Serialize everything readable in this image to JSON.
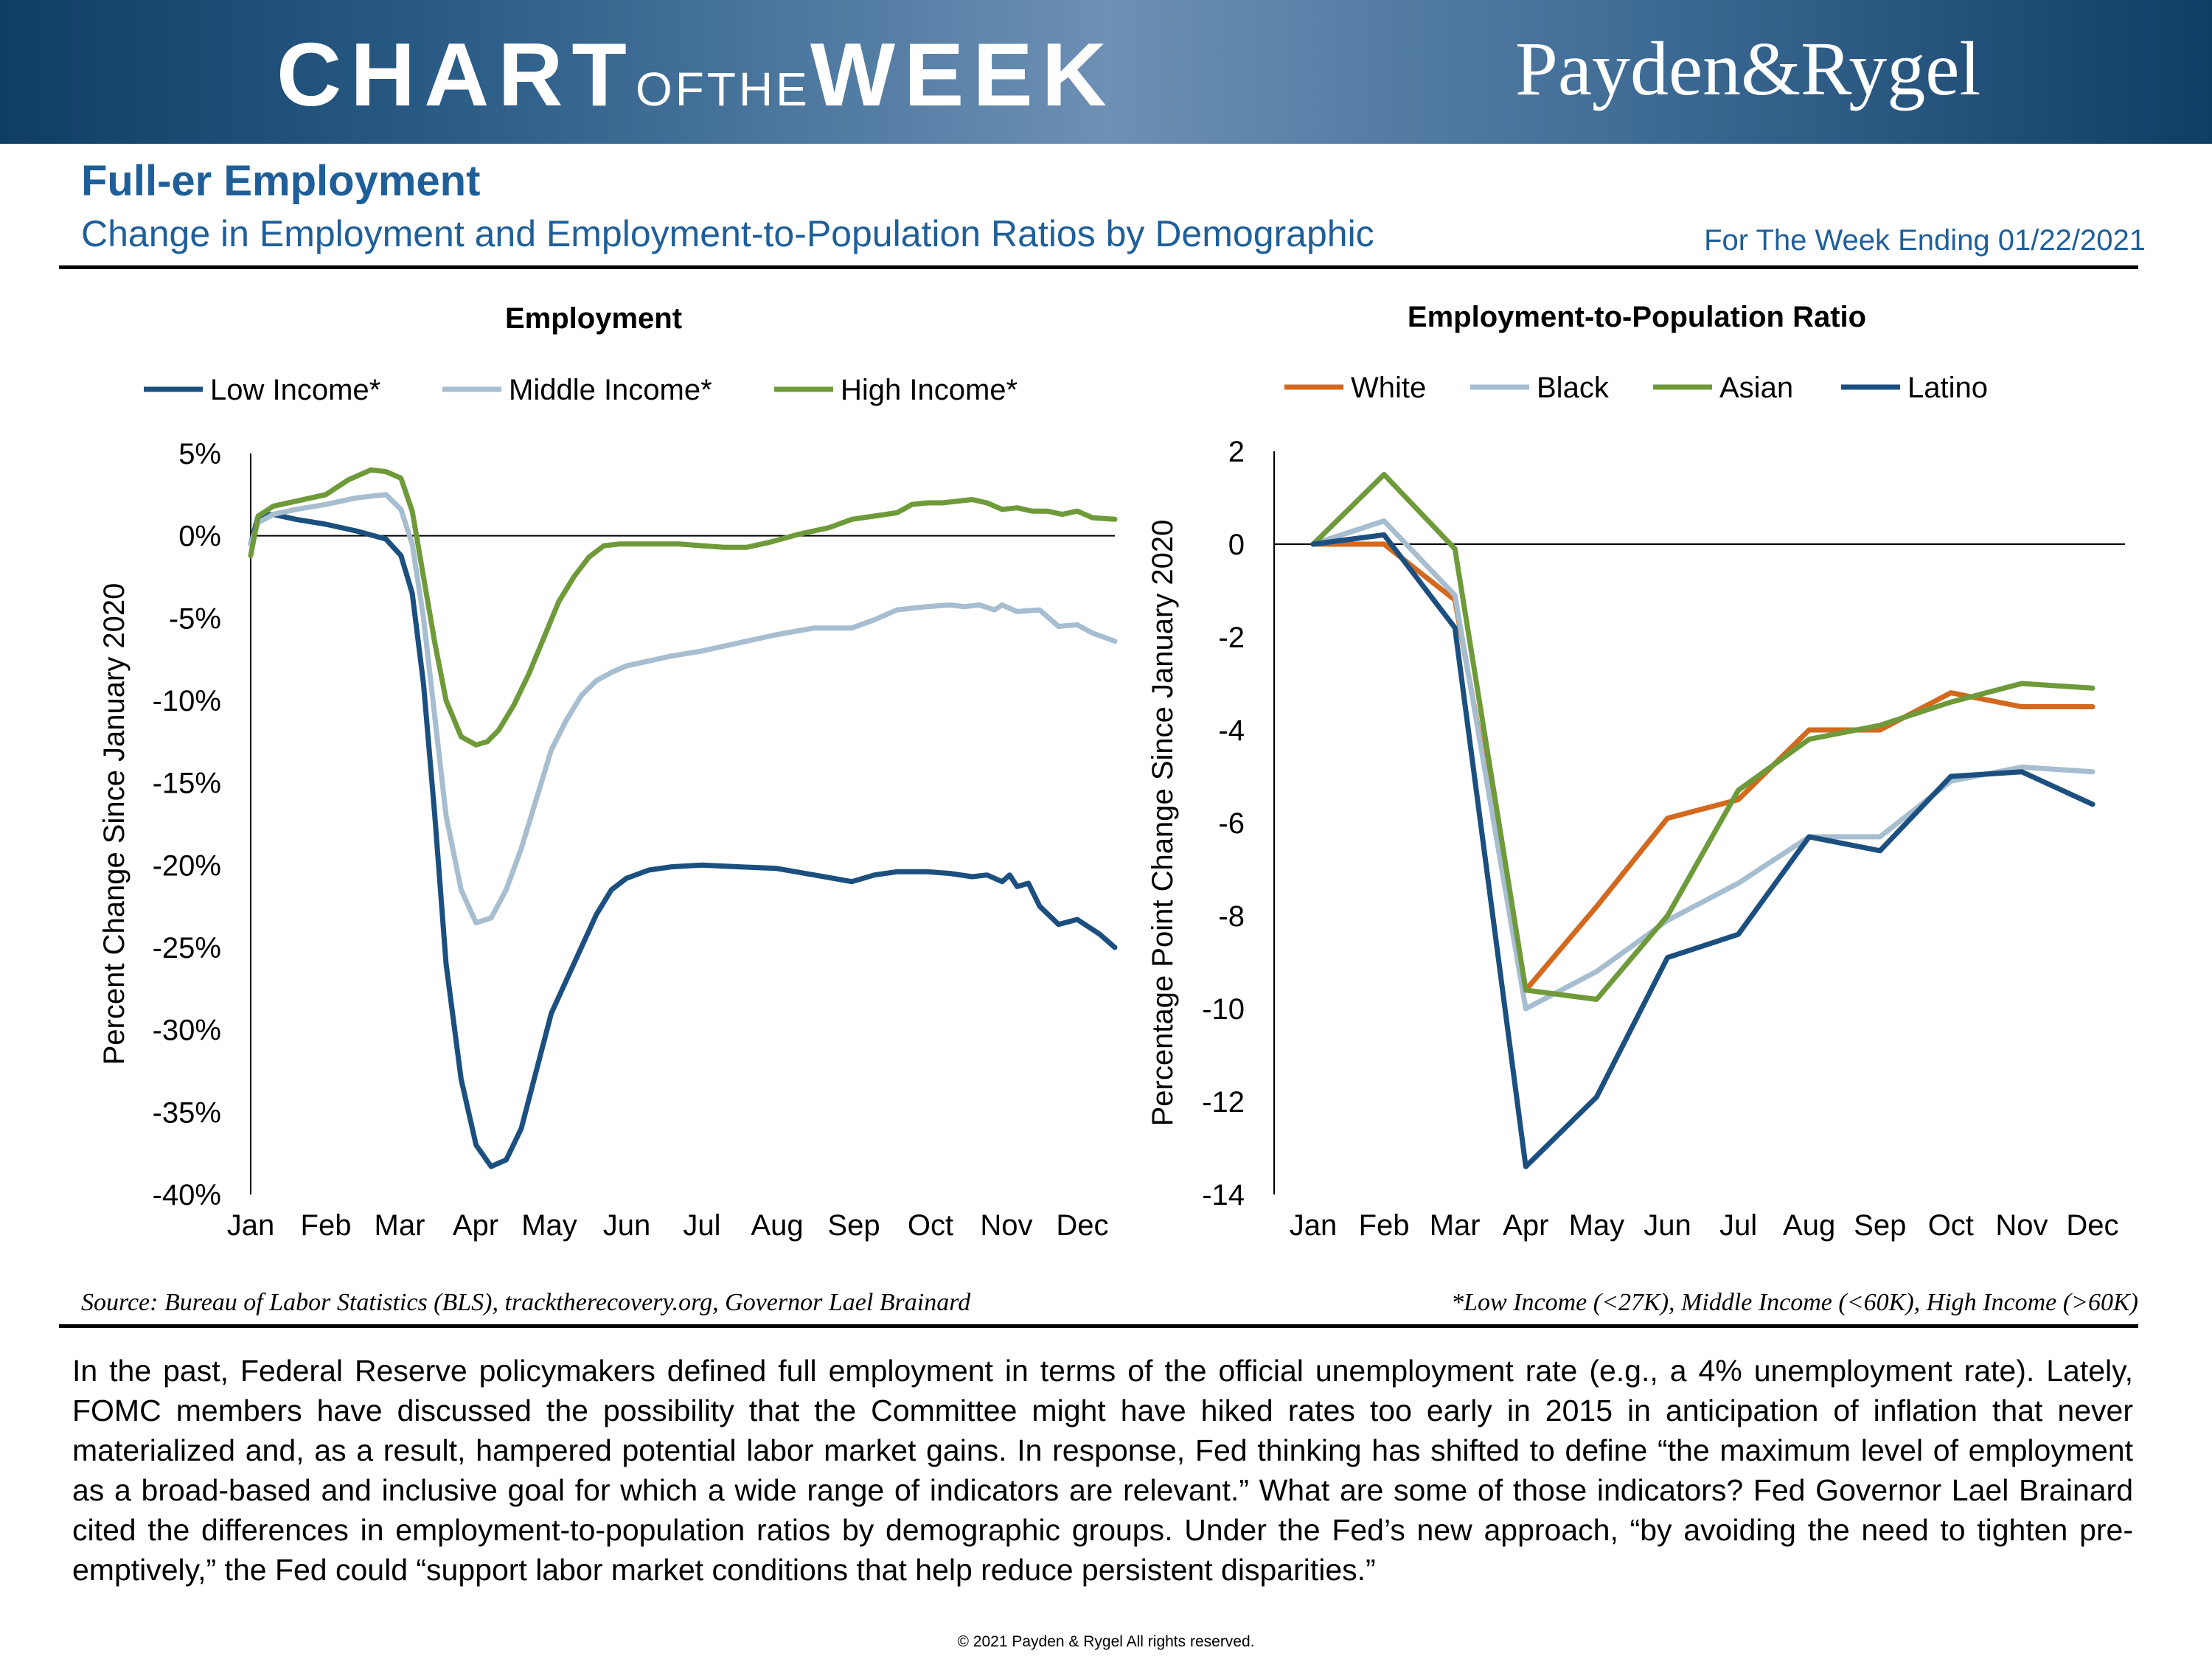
{
  "header": {
    "brand_chart": "CHART",
    "brand_ofthe": "OFTHE",
    "brand_week": "WEEK",
    "logo": "Payden&Rygel"
  },
  "title": "Full-er Employment",
  "subtitle": "Change in Employment and Employment-to-Population Ratios by Demographic",
  "week_ending": "For The Week Ending 01/22/2021",
  "chart_data": [
    {
      "type": "line",
      "title": "Employment",
      "ylabel": "Percent Change Since January 2020",
      "xlabel": "",
      "ylim": [
        -40,
        5
      ],
      "yticks": [
        "5%",
        "0%",
        "-5%",
        "-10%",
        "-15%",
        "-20%",
        "-25%",
        "-30%",
        "-35%",
        "-40%"
      ],
      "xlim": [
        0,
        11.5
      ],
      "categories": [
        "Jan",
        "Feb",
        "Mar",
        "Apr",
        "May",
        "Jun",
        "Jul",
        "Aug",
        "Sep",
        "Oct",
        "Nov",
        "Dec"
      ],
      "legend_position": "top",
      "series": [
        {
          "name": "Low Income*",
          "color": "#1b4f7f",
          "x": [
            0,
            0.1,
            0.3,
            0.6,
            1.0,
            1.4,
            1.8,
            2.0,
            2.15,
            2.3,
            2.45,
            2.6,
            2.8,
            3.0,
            3.2,
            3.4,
            3.6,
            3.8,
            4.0,
            4.2,
            4.4,
            4.6,
            4.8,
            5.0,
            5.3,
            5.6,
            6.0,
            6.5,
            7.0,
            7.5,
            8.0,
            8.3,
            8.6,
            9.0,
            9.3,
            9.6,
            9.8,
            10.0,
            10.1,
            10.2,
            10.35,
            10.5,
            10.75,
            11.0,
            11.3,
            11.5
          ],
          "values": [
            -0.5,
            1.2,
            1.3,
            1.0,
            0.7,
            0.3,
            -0.2,
            -1.2,
            -3.5,
            -9,
            -17,
            -26,
            -33,
            -37,
            -38.3,
            -37.9,
            -36,
            -32.5,
            -29,
            -27,
            -25,
            -23,
            -21.5,
            -20.8,
            -20.3,
            -20.1,
            -20.0,
            -20.1,
            -20.2,
            -20.6,
            -21.0,
            -20.6,
            -20.4,
            -20.4,
            -20.5,
            -20.7,
            -20.6,
            -21.0,
            -20.6,
            -21.3,
            -21.1,
            -22.5,
            -23.6,
            -23.3,
            -24.2,
            -25.0
          ]
        },
        {
          "name": "Middle Income*",
          "color": "#a7bdd0",
          "x": [
            0,
            0.1,
            0.3,
            0.6,
            1.0,
            1.4,
            1.8,
            2.0,
            2.15,
            2.3,
            2.45,
            2.6,
            2.8,
            3.0,
            3.2,
            3.4,
            3.6,
            3.8,
            4.0,
            4.2,
            4.4,
            4.6,
            4.8,
            5.0,
            5.3,
            5.6,
            6.0,
            6.5,
            7.0,
            7.5,
            8.0,
            8.3,
            8.6,
            8.8,
            9.0,
            9.3,
            9.5,
            9.7,
            9.9,
            10.0,
            10.2,
            10.5,
            10.75,
            11.0,
            11.2,
            11.5
          ],
          "values": [
            -0.5,
            0.8,
            1.3,
            1.6,
            1.9,
            2.3,
            2.5,
            1.6,
            -0.5,
            -5,
            -11,
            -17,
            -21.5,
            -23.5,
            -23.2,
            -21.5,
            -19,
            -16,
            -13,
            -11.2,
            -9.7,
            -8.8,
            -8.3,
            -7.9,
            -7.6,
            -7.3,
            -7.0,
            -6.5,
            -6.0,
            -5.6,
            -5.6,
            -5.1,
            -4.5,
            -4.4,
            -4.3,
            -4.2,
            -4.3,
            -4.2,
            -4.5,
            -4.2,
            -4.6,
            -4.5,
            -5.5,
            -5.4,
            -5.9,
            -6.4
          ]
        },
        {
          "name": "High Income*",
          "color": "#6e9a3a",
          "x": [
            0,
            0.1,
            0.3,
            0.6,
            1.0,
            1.3,
            1.6,
            1.8,
            2.0,
            2.15,
            2.3,
            2.45,
            2.6,
            2.8,
            3.0,
            3.15,
            3.3,
            3.5,
            3.7,
            3.9,
            4.1,
            4.3,
            4.5,
            4.7,
            4.9,
            5.0,
            5.3,
            5.7,
            6.0,
            6.3,
            6.6,
            6.9,
            7.3,
            7.7,
            8.0,
            8.3,
            8.6,
            8.8,
            9.0,
            9.2,
            9.4,
            9.6,
            9.8,
            10.0,
            10.2,
            10.4,
            10.6,
            10.8,
            11.0,
            11.2,
            11.5
          ],
          "values": [
            -1.2,
            1.2,
            1.8,
            2.1,
            2.5,
            3.4,
            4.0,
            3.9,
            3.5,
            1.5,
            -2.5,
            -6.5,
            -10,
            -12.2,
            -12.7,
            -12.5,
            -11.8,
            -10.3,
            -8.4,
            -6.2,
            -4.0,
            -2.5,
            -1.3,
            -0.6,
            -0.5,
            -0.5,
            -0.5,
            -0.5,
            -0.6,
            -0.7,
            -0.7,
            -0.4,
            0.1,
            0.5,
            1.0,
            1.2,
            1.4,
            1.9,
            2.0,
            2.0,
            2.1,
            2.2,
            2.0,
            1.6,
            1.7,
            1.5,
            1.5,
            1.3,
            1.5,
            1.1,
            1.0
          ]
        }
      ]
    },
    {
      "type": "line",
      "title": "Employment-to-Population Ratio",
      "ylabel": "Percentage Point Change Since January 2020",
      "xlabel": "",
      "ylim": [
        -14,
        2
      ],
      "yticks": [
        "2",
        "0",
        "-2",
        "-4",
        "-6",
        "-8",
        "-10",
        "-12",
        "-14"
      ],
      "categories": [
        "Jan",
        "Feb",
        "Mar",
        "Apr",
        "May",
        "Jun",
        "Jul",
        "Aug",
        "Sep",
        "Oct",
        "Nov",
        "Dec"
      ],
      "legend_position": "top",
      "series": [
        {
          "name": "White",
          "color": "#d2691e",
          "values": [
            0,
            0,
            -1.2,
            -9.6,
            -7.8,
            -5.9,
            -5.5,
            -4.0,
            -4.0,
            -3.2,
            -3.5,
            -3.5
          ]
        },
        {
          "name": "Black",
          "color": "#a7bdd0",
          "values": [
            0,
            0.5,
            -1.1,
            -10.0,
            -9.2,
            -8.1,
            -7.3,
            -6.3,
            -6.3,
            -5.1,
            -4.8,
            -4.9
          ]
        },
        {
          "name": "Asian",
          "color": "#6e9a3a",
          "values": [
            0,
            1.5,
            -0.1,
            -9.6,
            -9.8,
            -8.0,
            -5.3,
            -4.2,
            -3.9,
            -3.4,
            -3.0,
            -3.1
          ]
        },
        {
          "name": "Latino",
          "color": "#1b4f7f",
          "values": [
            0,
            0.2,
            -1.8,
            -13.4,
            -11.9,
            -8.9,
            -8.4,
            -6.3,
            -6.6,
            -5.0,
            -4.9,
            -5.6
          ]
        }
      ]
    }
  ],
  "source": "Source: Bureau of Labor Statistics (BLS), tracktherecovery.org, Governor Lael Brainard",
  "footnote": "*Low Income (<27K), Middle Income (<60K), High Income (>60K)",
  "body_text": "In the past, Federal Reserve policymakers defined full employment in terms of the official unemployment rate (e.g., a 4% unemployment rate). Lately, FOMC members have discussed the possibility that the Committee might have hiked rates too early in 2015 in anticipation of inflation that never materialized and, as a result, hampered potential labor market gains. In response, Fed thinking has shifted to define “the maximum level of employment as a broad-based and inclusive goal for which a wide range of indicators are relevant.” What are some of those indicators? Fed Governor Lael Brainard cited the differences in employment-to-population ratios by demographic groups. Under the Fed’s new approach, “by avoiding the need to tighten pre-emptively,” the Fed could “support labor market conditions that help reduce persistent disparities.”",
  "copyright": "© 2021 Payden & Rygel All rights reserved."
}
